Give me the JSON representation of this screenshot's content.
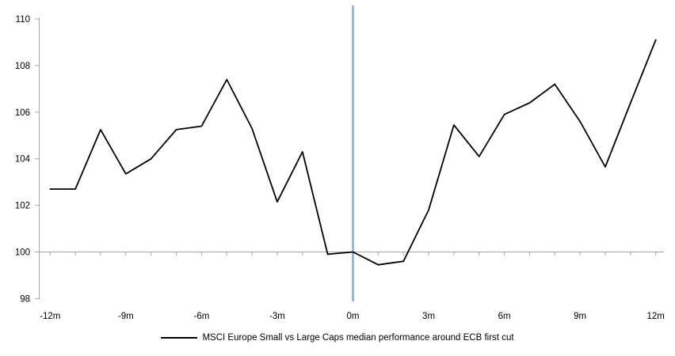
{
  "chart": {
    "legend_label": "MSCI Europe Small vs Large Caps median performance around ECB first cut"
  },
  "chart_data": {
    "type": "line",
    "title": "",
    "xlabel": "",
    "ylabel": "",
    "x": [
      -12,
      -11,
      -10,
      -9,
      -8,
      -7,
      -6,
      -5,
      -4,
      -3,
      -2,
      -1,
      0,
      1,
      2,
      3,
      4,
      5,
      6,
      7,
      8,
      9,
      10,
      11,
      12
    ],
    "series": [
      {
        "name": "MSCI Europe Small vs Large Caps median performance around ECB first cut",
        "color": "#000000",
        "values": [
          102.7,
          102.7,
          105.25,
          103.35,
          104.0,
          105.25,
          105.4,
          107.4,
          105.3,
          102.15,
          104.3,
          99.9,
          100.0,
          99.45,
          99.6,
          101.8,
          105.45,
          104.1,
          105.9,
          106.4,
          107.2,
          105.6,
          103.65,
          106.4,
          109.1
        ]
      }
    ],
    "ylim": [
      98,
      110
    ],
    "yticks": [
      {
        "v": 110,
        "label": "110"
      },
      {
        "v": 108,
        "label": "108"
      },
      {
        "v": 106,
        "label": "106"
      },
      {
        "v": 104,
        "label": "104"
      },
      {
        "v": 102,
        "label": "102"
      },
      {
        "v": 100,
        "label": "100"
      },
      {
        "v": 98,
        "label": "98"
      }
    ],
    "xticks": [
      {
        "m": -12,
        "label": "-12m"
      },
      {
        "m": -9,
        "label": "-9m"
      },
      {
        "m": -6,
        "label": "-6m"
      },
      {
        "m": -3,
        "label": "-3m"
      },
      {
        "m": 0,
        "label": "0m"
      },
      {
        "m": 3,
        "label": "3m"
      },
      {
        "m": 6,
        "label": "6m"
      },
      {
        "m": 9,
        "label": "9m"
      },
      {
        "m": 12,
        "label": "12m"
      }
    ],
    "minor_xtick_step_months": 1,
    "x_axis_crosses_at": 100,
    "event_line": {
      "m": 0,
      "color": "#76a3d1"
    },
    "axis_color": "#a6a6a6",
    "grid": false,
    "legend_position": "bottom-center",
    "legend": [
      "MSCI Europe Small vs Large Caps median performance around ECB first cut"
    ]
  }
}
